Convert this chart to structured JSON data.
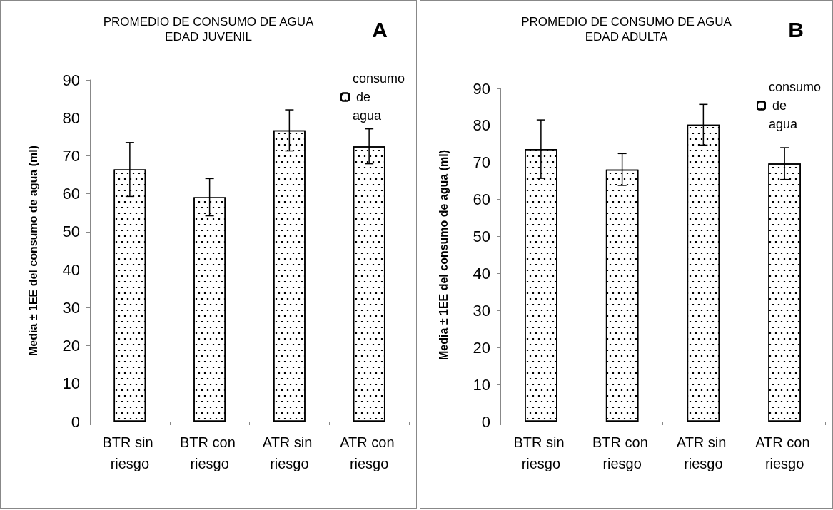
{
  "chart_data": [
    {
      "type": "bar",
      "title": "PROMEDIO DE CONSUMO DE AGUA",
      "subtitle": "EDAD JUVENIL",
      "ylabel": "Media ± 1EE del consumo de agua (ml)",
      "annotations": [
        "A"
      ],
      "categories": [
        "BTR sin riesgo",
        "BTR con riesgo",
        "ATR sin riesgo",
        "ATR con riesgo"
      ],
      "series": [
        {
          "name": "consumo de agua",
          "color": "#ffffff",
          "values": [
            66.4,
            59.1,
            76.7,
            72.5
          ],
          "errors": [
            7.1,
            4.9,
            5.4,
            4.6
          ]
        }
      ],
      "ylim": [
        0,
        90
      ],
      "yticks": [
        0,
        10,
        20,
        30,
        40,
        50,
        60,
        70,
        80,
        90
      ],
      "grid": false,
      "legend": "top right"
    },
    {
      "type": "bar",
      "title": "PROMEDIO DE CONSUMO DE AGUA",
      "subtitle": "EDAD ADULTA",
      "ylabel": "Media ± 1EE del consumo de agua (ml)",
      "annotations": [
        "B"
      ],
      "categories": [
        "BTR sin riesgo",
        "BTR con riesgo",
        "ATR sin riesgo",
        "ATR con riesgo"
      ],
      "series": [
        {
          "name": "consumo de agua",
          "color": "#ffffff",
          "values": [
            73.6,
            68.1,
            80.2,
            69.7
          ],
          "errors": [
            7.9,
            4.3,
            5.5,
            4.3
          ]
        }
      ],
      "ylim": [
        0,
        90
      ],
      "yticks": [
        0,
        10,
        20,
        30,
        40,
        50,
        60,
        70,
        80,
        90
      ],
      "grid": false,
      "legend": "top right"
    }
  ]
}
